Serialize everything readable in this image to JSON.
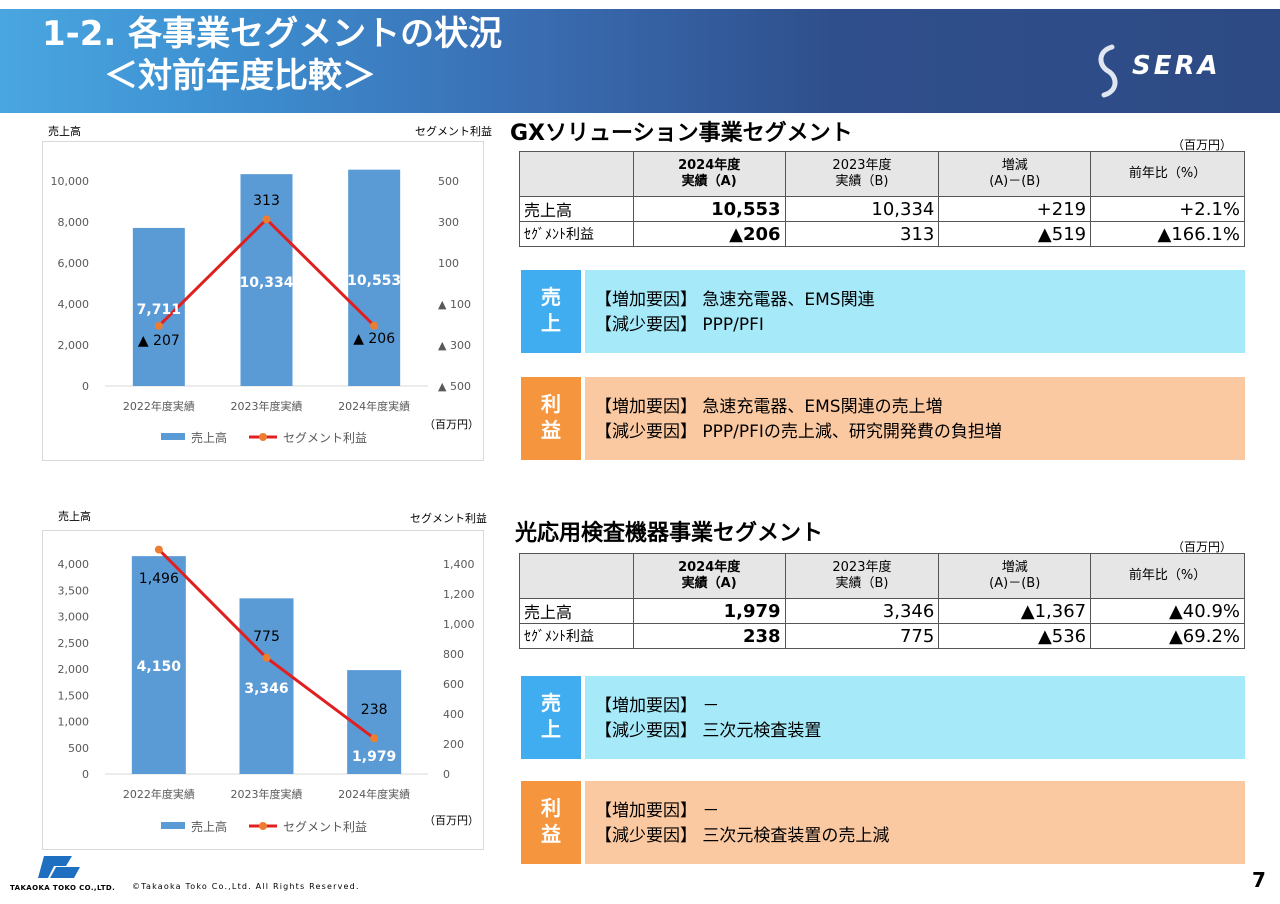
{
  "header": {
    "title_line1": "1-2. 各事業セグメントの状況",
    "title_line2": "＜対前年度比較＞",
    "logo_text": "SERA"
  },
  "chart_data": [
    {
      "type": "bar",
      "left_axis_label": "売上高",
      "right_axis_label": "セグメント利益",
      "unit": "（百万円）",
      "categories": [
        "2022年度実績",
        "2023年度実績",
        "2024年度実績"
      ],
      "left_ticks": [
        "0",
        "2,000",
        "4,000",
        "6,000",
        "8,000",
        "10,000"
      ],
      "right_ticks": [
        "▲ 500",
        "▲ 300",
        "▲ 100",
        "100",
        "300",
        "500"
      ],
      "ylim": [
        0,
        10000
      ],
      "y2lim": [
        -500,
        500
      ],
      "series": [
        {
          "name": "売上高",
          "type": "bar",
          "color": "#5b9bd5",
          "values": [
            7711,
            10334,
            10553
          ],
          "labels": [
            "7,711",
            "10,334",
            "10,553"
          ]
        },
        {
          "name": "セグメント利益",
          "type": "line",
          "color": "#e02020",
          "marker_color": "#ed7d31",
          "values": [
            -207,
            313,
            -206
          ],
          "labels": [
            "▲ 207",
            "313",
            "▲ 206"
          ]
        }
      ],
      "legend": "bottom"
    },
    {
      "type": "bar",
      "left_axis_label": "売上高",
      "right_axis_label": "セグメント利益",
      "unit": "（百万円）",
      "categories": [
        "2022年度実績",
        "2023年度実績",
        "2024年度実績"
      ],
      "left_ticks": [
        "0",
        "500",
        "1,000",
        "1,500",
        "2,000",
        "2,500",
        "3,000",
        "3,500",
        "4,000"
      ],
      "right_ticks": [
        "0",
        "200",
        "400",
        "600",
        "800",
        "1,000",
        "1,200",
        "1,400"
      ],
      "ylim": [
        0,
        4000
      ],
      "y2lim": [
        0,
        1400
      ],
      "series": [
        {
          "name": "売上高",
          "type": "bar",
          "color": "#5b9bd5",
          "values": [
            4150,
            3346,
            1979
          ],
          "labels": [
            "4,150",
            "3,346",
            "1,979"
          ]
        },
        {
          "name": "セグメント利益",
          "type": "line",
          "color": "#e02020",
          "marker_color": "#ed7d31",
          "values": [
            1496,
            775,
            238
          ],
          "labels": [
            "1,496",
            "775",
            "238"
          ]
        }
      ],
      "legend": "bottom"
    }
  ],
  "gx": {
    "title": "GXソリューション事業セグメント",
    "unit": "（百万円）",
    "head": {
      "c1a": "2024年度",
      "c1b": "実績（A)",
      "c2a": "2023年度",
      "c2b": "実績（B)",
      "c3a": "増減",
      "c3b": "(A)－(B)",
      "c4": "前年比（%）"
    },
    "rows": [
      {
        "label": "売上高",
        "a": "10,553",
        "b": "10,334",
        "diff": "+219",
        "ratio": "+2.1%"
      },
      {
        "label": "ｾｸﾞﾒﾝﾄ利益",
        "a": "▲206",
        "b": "313",
        "diff": "▲519",
        "ratio": "▲166.1%"
      }
    ],
    "sales": {
      "tag1": "売",
      "tag2": "上",
      "inc": "【増加要因】 急速充電器、EMS関連",
      "dec": "【減少要因】 PPP/PFI"
    },
    "profit": {
      "tag1": "利",
      "tag2": "益",
      "inc": "【増加要因】 急速充電器、EMS関連の売上増",
      "dec": "【減少要因】 PPP/PFIの売上減、研究開発費の負担増"
    }
  },
  "opt": {
    "title": "光応用検査機器事業セグメント",
    "unit": "（百万円）",
    "head": {
      "c1a": "2024年度",
      "c1b": "実績（A)",
      "c2a": "2023年度",
      "c2b": "実績（B)",
      "c3a": "増減",
      "c3b": "(A)－(B)",
      "c4": "前年比（%）"
    },
    "rows": [
      {
        "label": "売上高",
        "a": "1,979",
        "b": "3,346",
        "diff": "▲1,367",
        "ratio": "▲40.9%"
      },
      {
        "label": "ｾｸﾞﾒﾝﾄ利益",
        "a": "238",
        "b": "775",
        "diff": "▲536",
        "ratio": "▲69.2%"
      }
    ],
    "sales": {
      "tag1": "売",
      "tag2": "上",
      "inc": "【増加要因】 －",
      "dec": "【減少要因】 三次元検査装置"
    },
    "profit": {
      "tag1": "利",
      "tag2": "益",
      "inc": "【増加要因】 －",
      "dec": "【減少要因】 三次元検査装置の売上減"
    }
  },
  "footer": {
    "company": "TAKAOKA TOKO CO.,LTD.",
    "copyright": "©Takaoka Toko Co.,Ltd. All Rights Reserved.",
    "page": "7"
  }
}
